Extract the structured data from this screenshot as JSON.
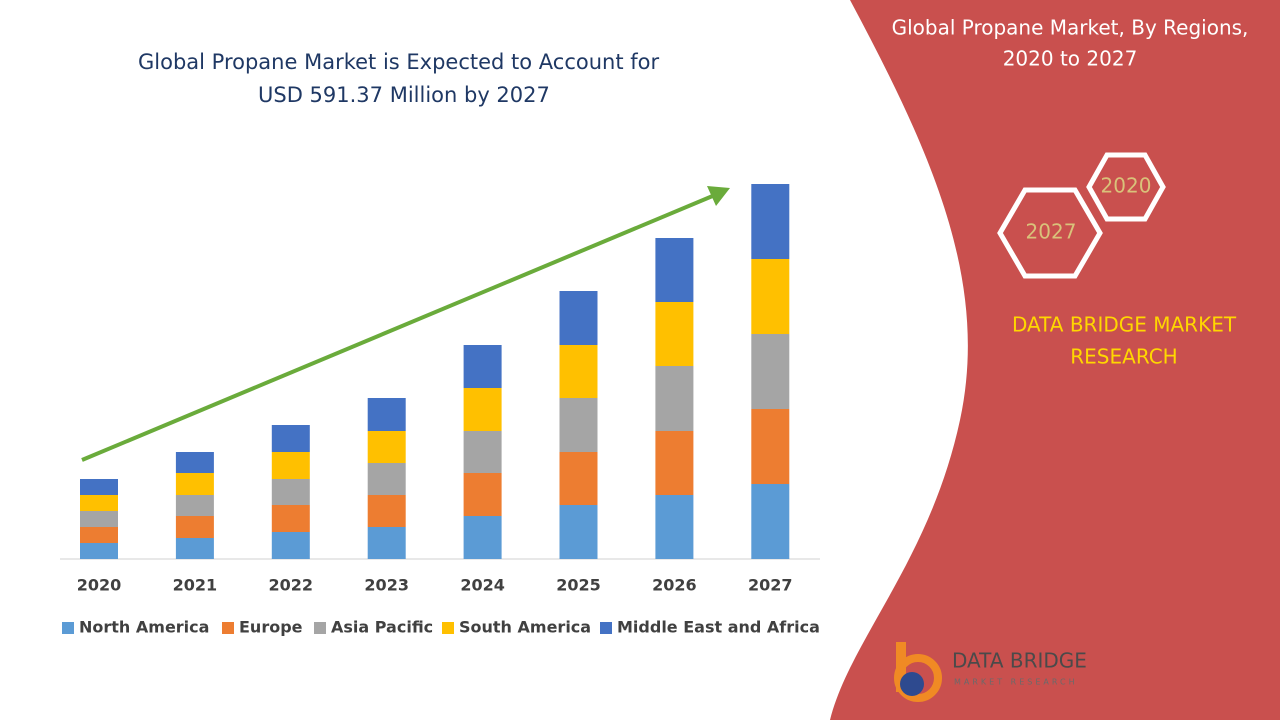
{
  "chart_data": {
    "type": "bar",
    "stacked": true,
    "title": [
      "Global Propane Market is Expected to Account for",
      "USD 591.37 Million by 2027"
    ],
    "categories": [
      "2020",
      "2021",
      "2022",
      "2023",
      "2024",
      "2025",
      "2026",
      "2027"
    ],
    "series": [
      {
        "name": "North America",
        "color": "#5b9bd5",
        "values": [
          16,
          21,
          27,
          32,
          43,
          54,
          64,
          75
        ]
      },
      {
        "name": "Europe",
        "color": "#ed7d31",
        "values": [
          16,
          22,
          27,
          32,
          43,
          53,
          64,
          75
        ]
      },
      {
        "name": "Asia Pacific",
        "color": "#a5a5a5",
        "values": [
          16,
          21,
          26,
          32,
          42,
          54,
          65,
          75
        ]
      },
      {
        "name": "South America",
        "color": "#ffc000",
        "values": [
          16,
          22,
          27,
          32,
          43,
          53,
          64,
          75
        ]
      },
      {
        "name": "Middle East and Africa",
        "color": "#4472c4",
        "values": [
          16,
          21,
          27,
          33,
          43,
          54,
          64,
          75
        ]
      }
    ],
    "ylim": [
      0,
      375
    ],
    "legend": "bottom"
  },
  "panel": {
    "title": [
      "Global Propane Market, By Regions,",
      "2020 to 2027"
    ],
    "hexagons": [
      "2020",
      "2027"
    ],
    "brand": [
      "DATA BRIDGE MARKET",
      "RESEARCH"
    ],
    "logo": [
      "DATA BRIDGE",
      "MARKET RESEARCH"
    ]
  }
}
